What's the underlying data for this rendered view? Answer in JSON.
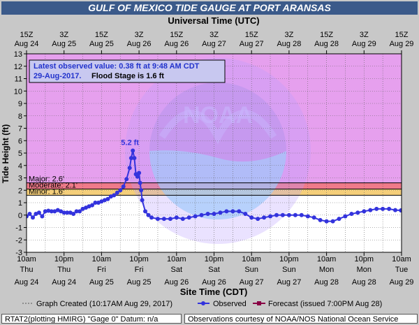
{
  "page": {
    "title": "GULF OF MEXICO TIDE GAUGE AT PORT ARANSAS",
    "footer_left": "RTAT2(plotting HMIRG) \"Gage 0\" Datum: n/a",
    "footer_right": "Observations courtesy of NOAA/NOS National Ocean Service"
  },
  "infobox": {
    "line1": "Latest observed value: 0.38 ft at 9:48 AM CDT",
    "line2_date": "29-Aug-2017.",
    "line2_flood": "Flood Stage is 1.6 ft"
  },
  "legend": {
    "created": "Graph Created (10:17AM Aug 29, 2017)",
    "observed": "Observed",
    "forecast": "Forecast (issued 7:00PM Aug 28)"
  },
  "colors": {
    "major": "#e6a0ee",
    "moderate": "#f07a8a",
    "minor": "#f5cf7a",
    "observed": "#3333dd",
    "forecast": "#880044",
    "title_bar": "#3b5a8a"
  },
  "chart_data": {
    "type": "line",
    "title": "GULF OF MEXICO TIDE GAUGE AT PORT ARANSAS",
    "xlabel": "Site Time (CDT)",
    "x2label": "Universal Time (UTC)",
    "ylabel": "Tide Height (ft)",
    "ylim": [
      -3,
      13
    ],
    "yticks": [
      -3,
      -2,
      -1,
      0,
      1,
      2,
      3,
      4,
      5,
      6,
      7,
      8,
      9,
      10,
      11,
      12,
      13
    ],
    "xlim": [
      "2017-08-24 10:00",
      "2017-08-29 10:00"
    ],
    "grid": true,
    "xticks_bottom": [
      {
        "t": "2017-08-24 10:00",
        "time": "10am",
        "day": "Thu",
        "date": "Aug 24"
      },
      {
        "t": "2017-08-24 22:00",
        "time": "10pm",
        "day": "Thu",
        "date": "Aug 24"
      },
      {
        "t": "2017-08-25 10:00",
        "time": "10am",
        "day": "Fri",
        "date": "Aug 25"
      },
      {
        "t": "2017-08-25 22:00",
        "time": "10pm",
        "day": "Fri",
        "date": "Aug 25"
      },
      {
        "t": "2017-08-26 10:00",
        "time": "10am",
        "day": "Sat",
        "date": "Aug 26"
      },
      {
        "t": "2017-08-26 22:00",
        "time": "10pm",
        "day": "Sat",
        "date": "Aug 26"
      },
      {
        "t": "2017-08-27 10:00",
        "time": "10am",
        "day": "Sun",
        "date": "Aug 27"
      },
      {
        "t": "2017-08-27 22:00",
        "time": "10pm",
        "day": "Sun",
        "date": "Aug 27"
      },
      {
        "t": "2017-08-28 10:00",
        "time": "10am",
        "day": "Mon",
        "date": "Aug 28"
      },
      {
        "t": "2017-08-28 22:00",
        "time": "10pm",
        "day": "Mon",
        "date": "Aug 28"
      },
      {
        "t": "2017-08-29 10:00",
        "time": "10am",
        "day": "Tue",
        "date": "Aug 29"
      }
    ],
    "xticks_top": [
      {
        "t": "2017-08-24 10:00",
        "time": "15Z",
        "date": "Aug 24"
      },
      {
        "t": "2017-08-24 22:00",
        "time": "3Z",
        "date": "Aug 25"
      },
      {
        "t": "2017-08-25 10:00",
        "time": "15Z",
        "date": "Aug 25"
      },
      {
        "t": "2017-08-25 22:00",
        "time": "3Z",
        "date": "Aug 26"
      },
      {
        "t": "2017-08-26 10:00",
        "time": "15Z",
        "date": "Aug 26"
      },
      {
        "t": "2017-08-26 22:00",
        "time": "3Z",
        "date": "Aug 27"
      },
      {
        "t": "2017-08-27 10:00",
        "time": "15Z",
        "date": "Aug 27"
      },
      {
        "t": "2017-08-27 22:00",
        "time": "3Z",
        "date": "Aug 28"
      },
      {
        "t": "2017-08-28 10:00",
        "time": "15Z",
        "date": "Aug 28"
      },
      {
        "t": "2017-08-28 22:00",
        "time": "3Z",
        "date": "Aug 29"
      },
      {
        "t": "2017-08-29 10:00",
        "time": "15Z",
        "date": "Aug 29"
      }
    ],
    "flood_categories": [
      {
        "name": "Major",
        "label": "Major: 2.6'",
        "from": 2.6,
        "to": 13
      },
      {
        "name": "Moderate",
        "label": "Moderate: 2.1'",
        "from": 2.1,
        "to": 2.6
      },
      {
        "name": "Minor",
        "label": "Minor: 1.6'",
        "from": 1.6,
        "to": 2.1
      }
    ],
    "annotations": [
      {
        "text": "5.2 ft",
        "t": "2017-08-25 20:00",
        "y": 5.2
      }
    ],
    "series": [
      {
        "name": "Observed",
        "points": [
          [
            "2017-08-24 10:00",
            -0.1
          ],
          [
            "2017-08-24 11:00",
            0.1
          ],
          [
            "2017-08-24 12:00",
            -0.2
          ],
          [
            "2017-08-24 13:00",
            0.1
          ],
          [
            "2017-08-24 14:00",
            0.2
          ],
          [
            "2017-08-24 15:00",
            -0.1
          ],
          [
            "2017-08-24 16:00",
            0.3
          ],
          [
            "2017-08-24 17:00",
            0.35
          ],
          [
            "2017-08-24 18:00",
            0.3
          ],
          [
            "2017-08-24 19:00",
            0.3
          ],
          [
            "2017-08-24 20:00",
            0.4
          ],
          [
            "2017-08-24 21:00",
            0.3
          ],
          [
            "2017-08-24 22:00",
            0.2
          ],
          [
            "2017-08-24 23:00",
            0.2
          ],
          [
            "2017-08-25 00:00",
            0.2
          ],
          [
            "2017-08-25 01:00",
            0.1
          ],
          [
            "2017-08-25 02:00",
            0.3
          ],
          [
            "2017-08-25 03:00",
            0.3
          ],
          [
            "2017-08-25 04:00",
            0.5
          ],
          [
            "2017-08-25 05:00",
            0.6
          ],
          [
            "2017-08-25 06:00",
            0.7
          ],
          [
            "2017-08-25 07:00",
            0.8
          ],
          [
            "2017-08-25 08:00",
            1.0
          ],
          [
            "2017-08-25 09:00",
            1.0
          ],
          [
            "2017-08-25 10:00",
            1.1
          ],
          [
            "2017-08-25 11:00",
            1.2
          ],
          [
            "2017-08-25 12:00",
            1.3
          ],
          [
            "2017-08-25 13:00",
            1.5
          ],
          [
            "2017-08-25 14:00",
            1.6
          ],
          [
            "2017-08-25 15:00",
            1.8
          ],
          [
            "2017-08-25 16:00",
            2.0
          ],
          [
            "2017-08-25 17:00",
            2.3
          ],
          [
            "2017-08-25 18:00",
            2.9
          ],
          [
            "2017-08-25 19:00",
            3.8
          ],
          [
            "2017-08-25 19:30",
            4.6
          ],
          [
            "2017-08-25 20:00",
            5.2
          ],
          [
            "2017-08-25 20:30",
            4.6
          ],
          [
            "2017-08-25 21:00",
            3.3
          ],
          [
            "2017-08-25 21:30",
            3.1
          ],
          [
            "2017-08-25 22:00",
            3.4
          ],
          [
            "2017-08-25 22:20",
            2.6
          ],
          [
            "2017-08-25 22:40",
            2.0
          ],
          [
            "2017-08-25 23:00",
            1.2
          ],
          [
            "2017-08-26 00:00",
            0.3
          ],
          [
            "2017-08-26 01:00",
            0.0
          ],
          [
            "2017-08-26 02:00",
            -0.2
          ],
          [
            "2017-08-26 04:00",
            -0.3
          ],
          [
            "2017-08-26 06:00",
            -0.3
          ],
          [
            "2017-08-26 08:00",
            -0.3
          ],
          [
            "2017-08-26 10:00",
            -0.2
          ],
          [
            "2017-08-26 12:00",
            -0.3
          ],
          [
            "2017-08-26 14:00",
            -0.2
          ],
          [
            "2017-08-26 16:00",
            -0.1
          ],
          [
            "2017-08-26 18:00",
            0.0
          ],
          [
            "2017-08-26 20:00",
            0.1
          ],
          [
            "2017-08-26 22:00",
            0.1
          ],
          [
            "2017-08-27 00:00",
            0.2
          ],
          [
            "2017-08-27 02:00",
            0.3
          ],
          [
            "2017-08-27 04:00",
            0.3
          ],
          [
            "2017-08-27 06:00",
            0.3
          ],
          [
            "2017-08-27 08:00",
            0.1
          ],
          [
            "2017-08-27 10:00",
            -0.2
          ],
          [
            "2017-08-27 12:00",
            -0.3
          ],
          [
            "2017-08-27 14:00",
            -0.2
          ],
          [
            "2017-08-27 16:00",
            -0.1
          ],
          [
            "2017-08-27 18:00",
            0.0
          ],
          [
            "2017-08-27 20:00",
            0.0
          ],
          [
            "2017-08-27 22:00",
            0.0
          ],
          [
            "2017-08-28 00:00",
            0.0
          ],
          [
            "2017-08-28 02:00",
            0.0
          ],
          [
            "2017-08-28 04:00",
            -0.1
          ],
          [
            "2017-08-28 06:00",
            -0.2
          ],
          [
            "2017-08-28 08:00",
            -0.4
          ],
          [
            "2017-08-28 10:00",
            -0.5
          ],
          [
            "2017-08-28 12:00",
            -0.5
          ],
          [
            "2017-08-28 14:00",
            -0.3
          ],
          [
            "2017-08-28 16:00",
            -0.1
          ],
          [
            "2017-08-28 18:00",
            0.1
          ],
          [
            "2017-08-28 20:00",
            0.2
          ],
          [
            "2017-08-28 22:00",
            0.3
          ],
          [
            "2017-08-29 00:00",
            0.4
          ],
          [
            "2017-08-29 02:00",
            0.5
          ],
          [
            "2017-08-29 04:00",
            0.5
          ],
          [
            "2017-08-29 06:00",
            0.5
          ],
          [
            "2017-08-29 08:00",
            0.4
          ],
          [
            "2017-08-29 09:48",
            0.38
          ]
        ]
      }
    ]
  }
}
